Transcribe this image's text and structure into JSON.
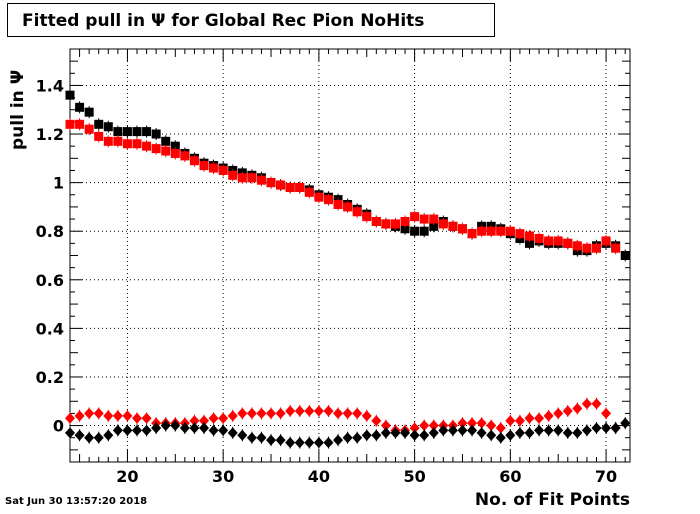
{
  "header": {
    "title": "Fitted pull in Ψ for Global Rec Pion NoHits"
  },
  "footer": {
    "timestamp": "Sat Jun 30 13:57:20 2018"
  },
  "colors": {
    "series1": "#000000",
    "series2": "#ff0000",
    "series3": "#ff0000",
    "series4": "#000000"
  },
  "chart_data": {
    "type": "scatter",
    "title": "Fitted pull in Ψ for Global Rec Pion NoHits",
    "xlabel": "No. of Fit Points",
    "ylabel": "pull in Ψ",
    "xlim": [
      14,
      72.5
    ],
    "ylim": [
      -0.15,
      1.55
    ],
    "grid": true,
    "x_ticks": [
      20,
      30,
      40,
      50,
      60,
      70
    ],
    "y_ticks": [
      0,
      0.2,
      0.4,
      0.6,
      0.8,
      1,
      1.2,
      1.4
    ],
    "x_tick_labels": [
      "20",
      "30",
      "40",
      "50",
      "60",
      "70"
    ],
    "y_tick_labels": [
      "0",
      "0.2",
      "0.4",
      "0.6",
      "0.8",
      "1",
      "1.2",
      "1.4"
    ],
    "x": [
      14,
      15,
      16,
      17,
      18,
      19,
      20,
      21,
      22,
      23,
      24,
      25,
      26,
      27,
      28,
      29,
      30,
      31,
      32,
      33,
      34,
      35,
      36,
      37,
      38,
      39,
      40,
      41,
      42,
      43,
      44,
      45,
      46,
      47,
      48,
      49,
      50,
      51,
      52,
      53,
      54,
      55,
      56,
      57,
      58,
      59,
      60,
      61,
      62,
      63,
      64,
      65,
      66,
      67,
      68,
      69,
      70,
      71,
      72
    ],
    "series": [
      {
        "marker": "square",
        "color": "#000000",
        "values": [
          1.36,
          1.31,
          1.29,
          1.24,
          1.23,
          1.21,
          1.21,
          1.21,
          1.21,
          1.2,
          1.17,
          1.15,
          1.12,
          1.1,
          1.08,
          1.07,
          1.06,
          1.05,
          1.04,
          1.03,
          1.02,
          1.0,
          0.99,
          0.98,
          0.98,
          0.97,
          0.95,
          0.94,
          0.93,
          0.91,
          0.89,
          0.87,
          0.84,
          0.83,
          0.82,
          0.81,
          0.8,
          0.8,
          0.82,
          0.84,
          0.82,
          0.81,
          0.79,
          0.82,
          0.82,
          0.81,
          0.79,
          0.77,
          0.75,
          0.76,
          0.75,
          0.75,
          0.75,
          0.72,
          0.72,
          0.74,
          0.75,
          0.74,
          0.7
        ]
      },
      {
        "marker": "square",
        "color": "#ff0000",
        "values": [
          1.24,
          1.24,
          1.22,
          1.19,
          1.17,
          1.17,
          1.16,
          1.16,
          1.15,
          1.14,
          1.13,
          1.12,
          1.11,
          1.09,
          1.07,
          1.06,
          1.05,
          1.03,
          1.02,
          1.02,
          1.01,
          1.0,
          0.99,
          0.98,
          0.98,
          0.96,
          0.94,
          0.93,
          0.91,
          0.9,
          0.88,
          0.86,
          0.84,
          0.83,
          0.83,
          0.84,
          0.86,
          0.85,
          0.85,
          0.83,
          0.82,
          0.81,
          0.79,
          0.8,
          0.8,
          0.8,
          0.8,
          0.79,
          0.78,
          0.77,
          0.76,
          0.76,
          0.75,
          0.74,
          0.73,
          0.73,
          0.76,
          0.73,
          null
        ]
      },
      {
        "marker": "diamond",
        "color": "#ff0000",
        "values": [
          0.03,
          0.04,
          0.05,
          0.05,
          0.04,
          0.04,
          0.04,
          0.03,
          0.03,
          0.01,
          0.01,
          0.01,
          0.01,
          0.02,
          0.02,
          0.03,
          0.03,
          0.04,
          0.05,
          0.05,
          0.05,
          0.05,
          0.05,
          0.06,
          0.06,
          0.06,
          0.06,
          0.06,
          0.05,
          0.05,
          0.05,
          0.04,
          0.02,
          0.0,
          -0.02,
          -0.02,
          -0.01,
          0.0,
          0.0,
          0.0,
          0.0,
          0.01,
          0.01,
          0.01,
          0.0,
          -0.01,
          0.02,
          0.02,
          0.03,
          0.03,
          0.04,
          0.05,
          0.06,
          0.07,
          0.09,
          0.09,
          0.05,
          -0.01,
          null
        ]
      },
      {
        "marker": "diamond",
        "color": "#000000",
        "values": [
          -0.03,
          -0.04,
          -0.05,
          -0.05,
          -0.04,
          -0.02,
          -0.02,
          -0.02,
          -0.02,
          -0.01,
          0.0,
          0.0,
          -0.01,
          -0.01,
          -0.01,
          -0.02,
          -0.02,
          -0.03,
          -0.04,
          -0.05,
          -0.05,
          -0.06,
          -0.06,
          -0.07,
          -0.07,
          -0.07,
          -0.07,
          -0.07,
          -0.06,
          -0.05,
          -0.05,
          -0.04,
          -0.04,
          -0.03,
          -0.03,
          -0.03,
          -0.04,
          -0.04,
          -0.03,
          -0.02,
          -0.02,
          -0.02,
          -0.02,
          -0.03,
          -0.04,
          -0.05,
          -0.04,
          -0.03,
          -0.03,
          -0.02,
          -0.02,
          -0.02,
          -0.03,
          -0.03,
          -0.02,
          -0.01,
          -0.01,
          -0.01,
          0.01
        ]
      }
    ]
  }
}
